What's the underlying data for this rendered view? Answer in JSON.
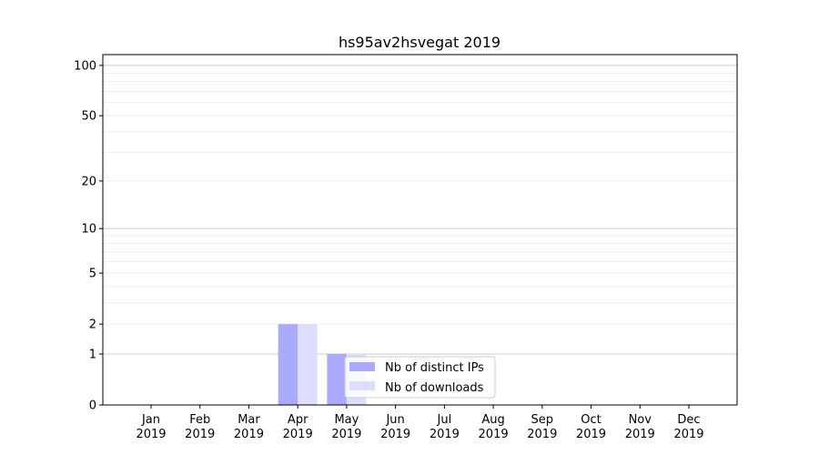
{
  "chart_data": {
    "type": "bar",
    "title": "hs95av2hsvegat 2019",
    "xlabel": "",
    "ylabel": "",
    "yscale": "log(1+y)",
    "ylim": [
      0,
      116
    ],
    "categories": [
      "Jan\n2019",
      "Feb\n2019",
      "Mar\n2019",
      "Apr\n2019",
      "May\n2019",
      "Jun\n2019",
      "Jul\n2019",
      "Aug\n2019",
      "Sep\n2019",
      "Oct\n2019",
      "Nov\n2019",
      "Dec\n2019"
    ],
    "yticks": [
      0,
      1,
      2,
      5,
      10,
      20,
      50,
      100
    ],
    "grid": true,
    "legend_position": "lower-center",
    "series": [
      {
        "name": "Nb of distinct IPs",
        "color": "#aaaaff",
        "values": [
          0,
          0,
          0,
          2,
          1,
          0,
          0,
          0,
          0,
          0,
          0,
          0
        ]
      },
      {
        "name": "Nb of downloads",
        "color": "#ddddff",
        "values": [
          0,
          0,
          0,
          2,
          1,
          0,
          0,
          0,
          0,
          0,
          0,
          0
        ]
      }
    ]
  }
}
